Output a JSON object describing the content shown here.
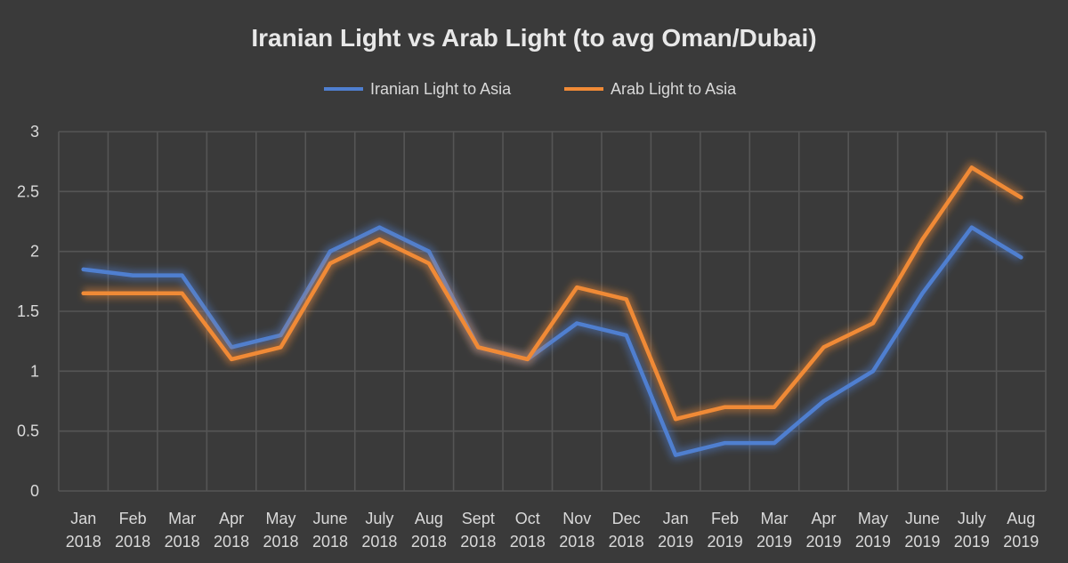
{
  "chart_data": {
    "type": "line",
    "title": "Iranian Light vs Arab Light (to avg Oman/Dubai)",
    "xlabel": "",
    "ylabel": "",
    "ylim": [
      0,
      3
    ],
    "yticks": [
      "0",
      "0.5",
      "1",
      "1.5",
      "2",
      "2.5",
      "3"
    ],
    "grid": true,
    "legend_position": "top-center",
    "categories": [
      [
        "Jan",
        "2018"
      ],
      [
        "Feb",
        "2018"
      ],
      [
        "Mar",
        "2018"
      ],
      [
        "Apr",
        "2018"
      ],
      [
        "May",
        "2018"
      ],
      [
        "June",
        "2018"
      ],
      [
        "July",
        "2018"
      ],
      [
        "Aug",
        "2018"
      ],
      [
        "Sept",
        "2018"
      ],
      [
        "Oct",
        "2018"
      ],
      [
        "Nov",
        "2018"
      ],
      [
        "Dec",
        "2018"
      ],
      [
        "Jan",
        "2019"
      ],
      [
        "Feb",
        "2019"
      ],
      [
        "Mar",
        "2019"
      ],
      [
        "Apr",
        "2019"
      ],
      [
        "May",
        "2019"
      ],
      [
        "June",
        "2019"
      ],
      [
        "July",
        "2019"
      ],
      [
        "Aug",
        "2019"
      ]
    ],
    "series": [
      {
        "name": "Iranian Light to Asia",
        "color": "#4f7fd0",
        "values": [
          1.85,
          1.8,
          1.8,
          1.2,
          1.3,
          2.0,
          2.2,
          2.0,
          1.2,
          1.1,
          1.4,
          1.3,
          0.3,
          0.4,
          0.4,
          0.75,
          1.0,
          1.65,
          2.2,
          1.95
        ]
      },
      {
        "name": "Arab Light to Asia",
        "color": "#f08a36",
        "values": [
          1.65,
          1.65,
          1.65,
          1.1,
          1.2,
          1.9,
          2.1,
          1.9,
          1.2,
          1.1,
          1.7,
          1.6,
          0.6,
          0.7,
          0.7,
          1.2,
          1.4,
          2.1,
          2.7,
          2.45
        ]
      }
    ]
  },
  "colors": {
    "background": "#3a3a3a",
    "grid": "#555555",
    "text": "#d9d9d9",
    "title": "#e8e8e8"
  }
}
